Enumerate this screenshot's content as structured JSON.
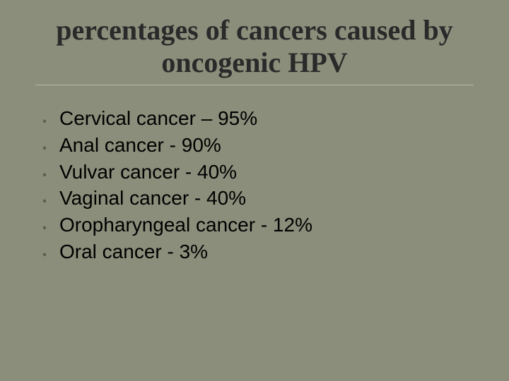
{
  "slide": {
    "title": "percentages of cancers caused by oncogenic HPV",
    "background_color": "#8a8e7a",
    "title_color": "#2a2a2a",
    "title_fontsize": 40,
    "divider_color": "#b5b8ab",
    "bullet_color": "#5a5e4e",
    "text_color": "#000000",
    "item_fontsize": 28,
    "bullet_char": "🞄",
    "items": [
      {
        "text": "Cervical cancer – 95%"
      },
      {
        "text": "Anal cancer - 90%"
      },
      {
        "text": "Vulvar cancer - 40%"
      },
      {
        "text": "Vaginal cancer - 40%"
      },
      {
        "text": "Oropharyngeal cancer - 12%"
      },
      {
        "text": "Oral cancer - 3%"
      }
    ]
  }
}
